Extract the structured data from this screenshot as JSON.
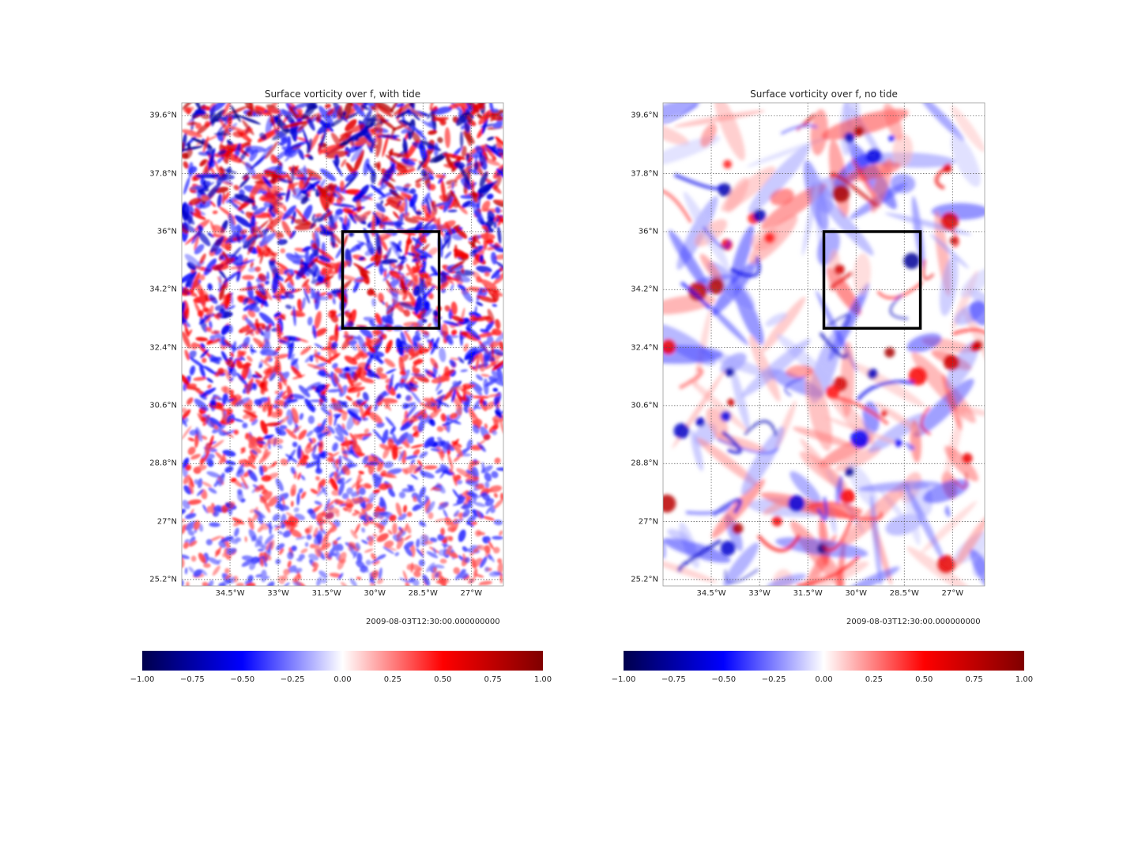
{
  "chart_data": [
    {
      "type": "heatmap",
      "title": "Surface vorticity over f, with tide",
      "timestamp": "2009-08-03T12:30:00.000000000",
      "x_ticks": [
        -34.5,
        -33,
        -31.5,
        -30,
        -28.5,
        -27
      ],
      "x_tick_labels": [
        "34.5°W",
        "33°W",
        "31.5°W",
        "30°W",
        "28.5°W",
        "27°W"
      ],
      "y_ticks": [
        39.6,
        37.8,
        36,
        34.2,
        32.4,
        30.6,
        28.8,
        27,
        25.2
      ],
      "y_tick_labels": [
        "39.6°N",
        "37.8°N",
        "36°N",
        "34.2°N",
        "32.4°N",
        "30.6°N",
        "28.8°N",
        "27°N",
        "25.2°N"
      ],
      "xlim": [
        -36,
        -26
      ],
      "ylim": [
        25,
        40
      ],
      "grid": true,
      "box": {
        "lon": [
          -31,
          -28
        ],
        "lat": [
          33,
          36
        ]
      },
      "field_character": "small-scale, high-frequency internal tide and eddy structure",
      "colorbar": {
        "cmap": "seismic",
        "range": [
          -1.0,
          1.0
        ],
        "ticks": [
          "−1.00",
          "−0.75",
          "−0.50",
          "−0.25",
          "0.00",
          "0.25",
          "0.50",
          "0.75",
          "1.00"
        ]
      }
    },
    {
      "type": "heatmap",
      "title": "Surface vorticity over f, no tide",
      "timestamp": "2009-08-03T12:30:00.000000000",
      "x_ticks": [
        -34.5,
        -33,
        -31.5,
        -30,
        -28.5,
        -27
      ],
      "x_tick_labels": [
        "34.5°W",
        "33°W",
        "31.5°W",
        "30°W",
        "28.5°W",
        "27°W"
      ],
      "y_ticks": [
        39.6,
        37.8,
        36,
        34.2,
        32.4,
        30.6,
        28.8,
        27,
        25.2
      ],
      "y_tick_labels": [
        "39.6°N",
        "37.8°N",
        "36°N",
        "34.2°N",
        "32.4°N",
        "30.6°N",
        "28.8°N",
        "27°N",
        "25.2°N"
      ],
      "xlim": [
        -36,
        -26
      ],
      "ylim": [
        25,
        40
      ],
      "grid": true,
      "box": {
        "lon": [
          -31,
          -28
        ],
        "lat": [
          33,
          36
        ]
      },
      "field_character": "smooth mesoscale eddies and filaments",
      "colorbar": {
        "cmap": "seismic",
        "range": [
          -1.0,
          1.0
        ],
        "ticks": [
          "−1.00",
          "−0.75",
          "−0.50",
          "−0.25",
          "0.00",
          "0.25",
          "0.50",
          "0.75",
          "1.00"
        ]
      }
    }
  ]
}
